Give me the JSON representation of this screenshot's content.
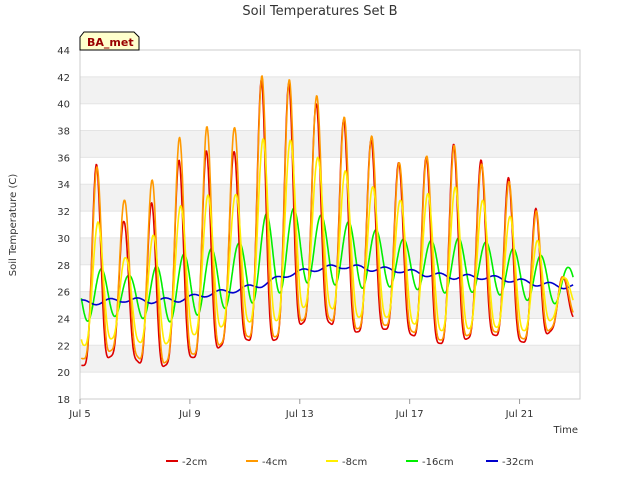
{
  "chart_data": {
    "type": "line",
    "title": "Soil Temperatures Set B",
    "xlabel": "Time",
    "ylabel": "Soil Temperature (C)",
    "station_label": "BA_met",
    "ylim": [
      18,
      44
    ],
    "yticks": [
      18,
      20,
      22,
      24,
      26,
      28,
      30,
      32,
      34,
      36,
      38,
      40,
      42,
      44
    ],
    "xlim_days": [
      5.0,
      23.2
    ],
    "xticks": [
      {
        "day": 5,
        "label": "Jul 5"
      },
      {
        "day": 9,
        "label": "Jul 9"
      },
      {
        "day": 13,
        "label": "Jul 13"
      },
      {
        "day": 17,
        "label": "Jul 17"
      },
      {
        "day": 21,
        "label": "Jul 21"
      }
    ],
    "grid": "horizontal-bands",
    "legend_position": "bottom",
    "colors": {
      "-2cm": "#dd0000",
      "-4cm": "#ff9900",
      "-8cm": "#ffee00",
      "-16cm": "#00ee00",
      "-32cm": "#0000cc"
    },
    "daily_peaks": {
      "days": [
        5.6,
        6.6,
        7.6,
        8.6,
        9.6,
        10.6,
        11.6,
        12.6,
        13.6,
        14.6,
        15.6,
        16.6,
        17.6,
        18.6,
        19.6,
        20.6,
        21.6,
        22.6
      ],
      "-2cm_max": [
        35.5,
        31.2,
        32.6,
        35.8,
        36.5,
        36.4,
        41.8,
        41.5,
        40.0,
        38.8,
        37.3,
        35.6,
        36.0,
        37.0,
        35.8,
        34.5,
        32.2,
        27.0
      ],
      "-2cm_min": [
        20.5,
        21.8,
        19.8,
        21.2,
        21.0,
        22.8,
        22.0,
        22.8,
        24.5,
        22.8,
        23.2,
        23.2,
        22.3,
        22.0,
        23.0,
        22.5,
        22.0,
        24.0
      ],
      "-4cm_max": [
        35.3,
        32.8,
        34.3,
        37.5,
        38.3,
        38.2,
        42.1,
        41.8,
        40.6,
        39.0,
        37.6,
        35.6,
        36.1,
        36.9,
        35.5,
        34.2,
        32.0,
        27.0
      ],
      "-4cm_min": [
        21.0,
        22.2,
        20.0,
        21.5,
        21.2,
        23.0,
        22.3,
        23.0,
        24.8,
        23.0,
        23.5,
        23.5,
        22.5,
        22.3,
        23.2,
        22.8,
        22.2,
        24.2
      ],
      "-8cm_max": [
        31.2,
        28.5,
        30.2,
        32.4,
        33.2,
        33.2,
        37.4,
        37.3,
        36.0,
        35.0,
        33.8,
        32.8,
        33.3,
        33.8,
        32.8,
        31.6,
        29.8,
        27.0
      ],
      "-8cm_min": [
        22.0,
        23.0,
        21.5,
        22.8,
        22.8,
        24.0,
        23.5,
        24.2,
        25.5,
        24.0,
        24.2,
        24.0,
        23.2,
        23.0,
        23.5,
        23.2,
        23.0,
        24.8
      ],
      "-16cm_max": [
        27.7,
        27.2,
        27.9,
        28.8,
        29.2,
        29.6,
        31.8,
        32.2,
        31.7,
        31.2,
        30.6,
        29.9,
        29.8,
        30.0,
        29.7,
        29.2,
        28.7,
        27.8
      ],
      "-16cm_min": [
        23.8,
        24.5,
        23.5,
        24.0,
        24.5,
        25.0,
        25.3,
        26.5,
        26.8,
        26.2,
        26.3,
        26.4,
        25.9,
        25.9,
        26.0,
        25.5,
        25.2,
        25.0
      ],
      "-32cm": [
        25.2,
        25.4,
        25.3,
        25.4,
        25.8,
        26.1,
        26.5,
        27.3,
        27.7,
        27.9,
        27.7,
        27.6,
        27.3,
        27.1,
        27.1,
        26.9,
        26.6,
        26.4
      ]
    },
    "series": [
      {
        "name": "-2cm"
      },
      {
        "name": "-4cm"
      },
      {
        "name": "-8cm"
      },
      {
        "name": "-16cm"
      },
      {
        "name": "-32cm"
      }
    ]
  }
}
